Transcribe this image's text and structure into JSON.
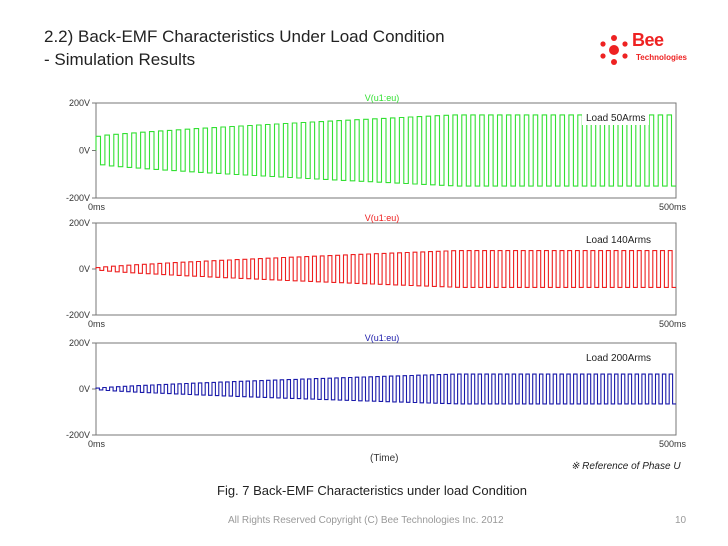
{
  "slide": {
    "title_line1": "2.2) Back-EMF Characteristics Under Load Condition",
    "title_line2": "- Simulation Results",
    "logo_text": "Bee",
    "logo_subtext": "Technologies",
    "note": "※ Reference of Phase U",
    "caption": "Fig. 7 Back-EMF Characteristics under load Condition",
    "footer": "All Rights Reserved Copyright (C) Bee Technologies Inc. 2012",
    "page_number": "10",
    "x_axis_title": "(Time)"
  },
  "colors": {
    "green": "#33e033",
    "red": "#ee2020",
    "blue": "#1a1aaa",
    "brand": "#ee2222"
  },
  "chart_data": [
    {
      "type": "line",
      "title": "V(u1:eu)",
      "legend": "Load 50Arms",
      "color": "green",
      "y_tick_labels": [
        "200V",
        "0V",
        "-200V"
      ],
      "x_tick_labels": [
        "0ms",
        "500ms"
      ],
      "ylim": [
        -200,
        200
      ],
      "xlim": [
        0,
        500
      ],
      "peak_start": 60,
      "peak_end": 150,
      "cycles": 65
    },
    {
      "type": "line",
      "title": "V(u1:eu)",
      "legend": "Load 140Arms",
      "color": "red",
      "y_tick_labels": [
        "200V",
        "0V",
        "-200V"
      ],
      "x_tick_labels": [
        "0ms",
        "500ms"
      ],
      "ylim": [
        -200,
        200
      ],
      "xlim": [
        0,
        500
      ],
      "peak_start": 6,
      "peak_end": 80,
      "cycles": 75
    },
    {
      "type": "line",
      "title": "V(u1:eu)",
      "legend": "Load 200Arms",
      "color": "blue",
      "y_tick_labels": [
        "200V",
        "0V",
        "-200V"
      ],
      "x_tick_labels": [
        "0ms",
        "500ms"
      ],
      "ylim": [
        -200,
        200
      ],
      "xlim": [
        0,
        500
      ],
      "peak_start": 4,
      "peak_end": 65,
      "cycles": 85
    }
  ]
}
